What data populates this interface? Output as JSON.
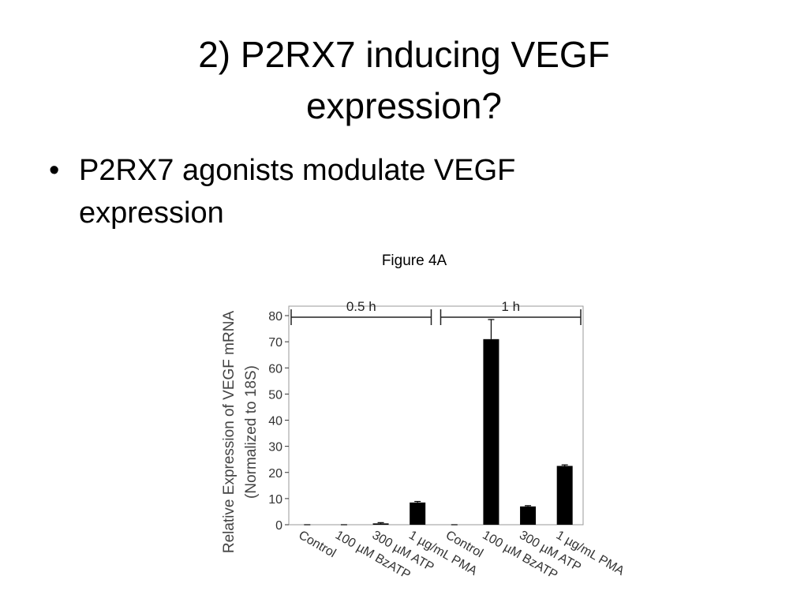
{
  "slide": {
    "title": [
      "2) P2RX7 inducing VEGF",
      "expression?"
    ],
    "bullets": [
      [
        "P2RX7 agonists modulate VEGF",
        "expression"
      ]
    ],
    "figure_label": "Figure 4A"
  },
  "chart_data": {
    "type": "bar",
    "y_label": [
      "Relative Expression of VEGF mRNA",
      "(Normalized to 18S)"
    ],
    "groups": [
      "0.5 h",
      "1 h"
    ],
    "categories": [
      "Control",
      "100 µM BzATP",
      "300 µM ATP",
      "1 µg/mL PMA",
      "Control",
      "100 µM BzATP",
      "300 µM ATP",
      "1 µg/mL PMA"
    ],
    "values": [
      0,
      0,
      0.5,
      8.5,
      0,
      71,
      7,
      22.5
    ],
    "errors": [
      0,
      0,
      0.3,
      0.4,
      0,
      7.5,
      0.3,
      0.4
    ],
    "color": "#000000",
    "ylim": [
      0,
      80
    ],
    "yticks": [
      0,
      10,
      20,
      30,
      40,
      50,
      60,
      70,
      80
    ],
    "grid": false
  }
}
